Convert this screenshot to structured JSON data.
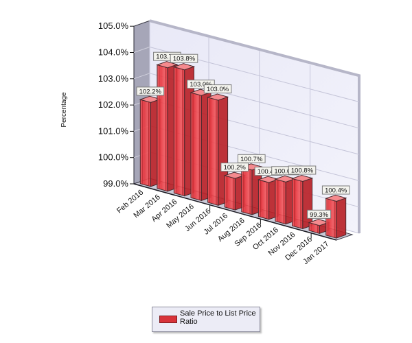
{
  "chart_data": {
    "type": "bar",
    "style": "3d-column",
    "title": "",
    "xlabel": "",
    "ylabel": "Percentage",
    "ylim": [
      99.0,
      105.0
    ],
    "yticks": [
      "105.0%",
      "104.0%",
      "103.0%",
      "102.0%",
      "101.0%",
      "100.0%",
      "99.0%"
    ],
    "categories": [
      "Feb 2016",
      "Mar 2016",
      "Apr 2016",
      "May 2016",
      "Jun 2016",
      "Jul 2016",
      "Aug 2016",
      "Sep 2016",
      "Oct 2016",
      "Nov 2016",
      "Dec 2016",
      "Jan 2017"
    ],
    "series": [
      {
        "name": "Sale Price to List Price Ratio",
        "color": "#e8343c",
        "values": [
          102.2,
          103.7,
          103.8,
          103.0,
          103.0,
          100.2,
          100.7,
          100.4,
          100.6,
          100.8,
          99.3,
          100.4
        ],
        "labels": [
          "102.2%",
          "103.7%",
          "103.8%",
          "103.0%",
          "103.0%",
          "100.2%",
          "100.7%",
          "100.4%",
          "100.6%",
          "100.8%",
          "99.3%",
          "100.4%"
        ]
      }
    ],
    "grid": true,
    "legend_position": "bottom-center"
  },
  "legend": {
    "items": [
      {
        "label": "Sale Price to List Price Ratio",
        "color": "#d8333a"
      }
    ]
  }
}
